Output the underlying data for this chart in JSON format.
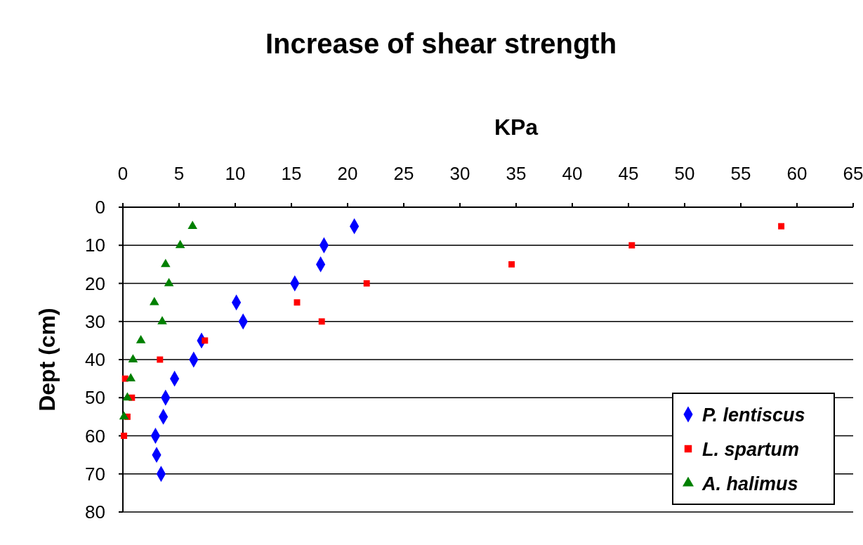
{
  "chart_data": {
    "type": "scatter",
    "title": "Increase of shear strength",
    "xlabel": "KPa",
    "ylabel": "Dept (cm)",
    "xlim": [
      0,
      65
    ],
    "xticks": [
      0,
      5,
      10,
      15,
      20,
      25,
      30,
      35,
      40,
      45,
      50,
      55,
      60,
      65
    ],
    "ylim": [
      80,
      0
    ],
    "yticks": [
      0,
      10,
      20,
      30,
      40,
      50,
      60,
      70,
      80
    ],
    "grid": "y",
    "legend": "bottom right",
    "series": [
      {
        "name": "P. lentiscus",
        "color": "#0000ff",
        "marker": "diamond",
        "x": [
          20.6,
          17.9,
          17.6,
          15.3,
          10.1,
          10.7,
          7.0,
          6.3,
          4.6,
          3.8,
          3.6,
          2.9,
          3.0,
          3.4
        ],
        "values": [
          5,
          10,
          15,
          20,
          25,
          30,
          35,
          40,
          45,
          50,
          55,
          60,
          65,
          70
        ]
      },
      {
        "name": "L. spartum",
        "color": "#ff0000",
        "marker": "square",
        "x": [
          58.6,
          45.3,
          34.6,
          21.7,
          15.5,
          17.7,
          7.3,
          3.3,
          0.2,
          0.8,
          0.4,
          0.1
        ],
        "values": [
          5,
          10,
          15,
          20,
          25,
          30,
          35,
          40,
          45,
          50,
          55,
          60
        ]
      },
      {
        "name": "A. halimus",
        "color": "#008000",
        "marker": "triangle",
        "x": [
          6.2,
          5.1,
          3.8,
          4.1,
          2.8,
          3.5,
          1.6,
          0.9,
          0.7,
          0.4,
          0.1
        ],
        "values": [
          5,
          10,
          15,
          20,
          25,
          30,
          35,
          40,
          45,
          50,
          55
        ]
      }
    ]
  }
}
